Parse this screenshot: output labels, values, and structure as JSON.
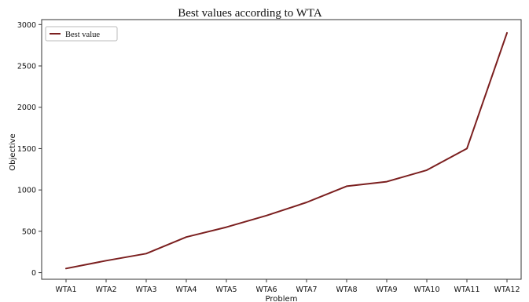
{
  "chart_data": {
    "type": "line",
    "title": "Best values according to WTA",
    "xlabel": "Problem",
    "ylabel": "Objective",
    "categories": [
      "WTA1",
      "WTA2",
      "WTA3",
      "WTA4",
      "WTA5",
      "WTA6",
      "WTA7",
      "WTA8",
      "WTA9",
      "WTA10",
      "WTA11",
      "WTA12"
    ],
    "yticks": [
      "0",
      "500",
      "1000",
      "1500",
      "2000",
      "2500",
      "3000"
    ],
    "ylim": [
      -80,
      3060
    ],
    "series": [
      {
        "name": "Best value",
        "color": "#7b1f1f",
        "values": [
          50,
          145,
          230,
          430,
          550,
          690,
          850,
          1045,
          1100,
          1240,
          1500,
          2900
        ]
      }
    ],
    "legend": "top-left",
    "grid": false
  }
}
